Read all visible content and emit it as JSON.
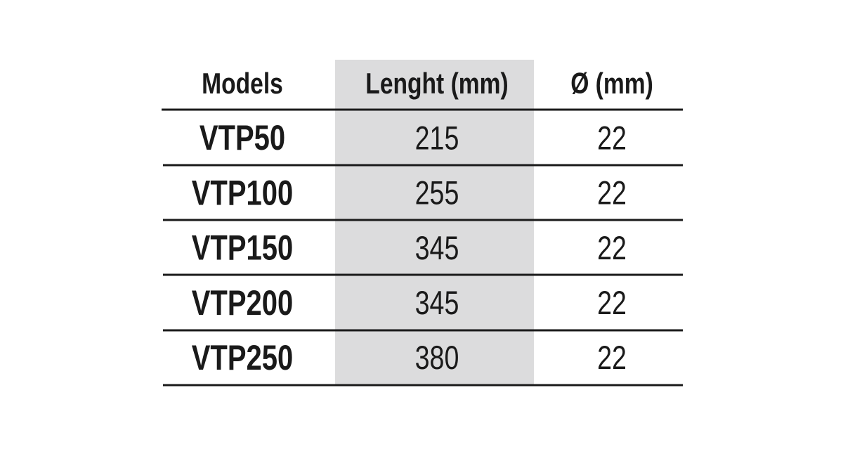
{
  "table": {
    "header": [
      "Models",
      "Lenght (mm)",
      "Ø (mm)"
    ],
    "rows": [
      [
        "VTP50",
        215,
        22
      ],
      [
        "VTP100",
        255,
        22
      ],
      [
        "VTP150",
        345,
        22
      ],
      [
        "VTP200",
        345,
        22
      ],
      [
        "VTP250",
        380,
        22
      ]
    ]
  }
}
